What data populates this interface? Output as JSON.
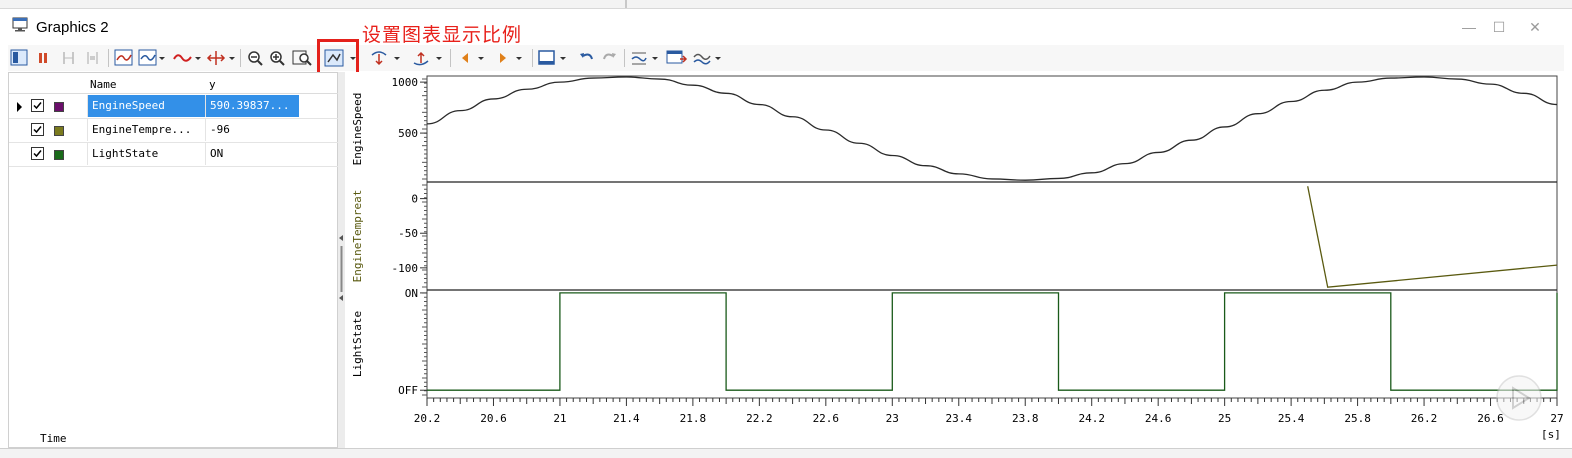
{
  "window": {
    "title": "Graphics 2"
  },
  "annotation": {
    "text": "设置图表显示比例"
  },
  "toolbar": {
    "icons": [
      "graphics-window-icon",
      "pause-icon",
      "measure-cursor-icon",
      "measure-cursor-2-icon",
      "signal-layout-icon",
      "signal-layout-2-icon",
      "line-style-icon",
      "axis-fit-icon",
      "zoom-out-icon",
      "zoom-in-icon",
      "zoom-fit-icon",
      "scale-settings-icon",
      "marker-down-icon",
      "marker-up-icon",
      "step-back-icon",
      "step-forward-icon",
      "window-layout-icon",
      "undo-icon",
      "redo-icon",
      "legend-icon",
      "export-icon",
      "trend-icon"
    ]
  },
  "signal_table": {
    "headers": {
      "name": "Name",
      "value": "y"
    },
    "rows": [
      {
        "name": "EngineSpeed",
        "value": "590.39837...",
        "color": "#6b0f6b",
        "selected": true
      },
      {
        "name": "EngineTempre...",
        "value": "-96",
        "color": "#7a7a1e",
        "selected": false
      },
      {
        "name": "LightState",
        "value": "ON",
        "color": "#1a6a1a",
        "selected": false
      }
    ],
    "footer_label": "Time"
  },
  "chart_data": [
    {
      "type": "line",
      "ylabel": "EngineSpeed",
      "yticks": [
        "1000",
        "500"
      ],
      "color": "#2a2a2a",
      "x": [
        20.2,
        20.4,
        20.6,
        20.8,
        21.0,
        21.2,
        21.4,
        21.6,
        21.8,
        22.0,
        22.2,
        22.4,
        22.6,
        22.8,
        23.0,
        23.2,
        23.4,
        23.6,
        23.8,
        24.0,
        24.2,
        24.4,
        24.6,
        24.8,
        25.0,
        25.2,
        25.4,
        25.6,
        25.8,
        26.0,
        26.2,
        26.4,
        26.6,
        26.8,
        27.0
      ],
      "y": [
        590,
        720,
        835,
        930,
        1000,
        1040,
        1050,
        1030,
        970,
        890,
        780,
        660,
        530,
        400,
        280,
        180,
        100,
        50,
        38,
        55,
        110,
        200,
        310,
        430,
        560,
        690,
        810,
        920,
        1000,
        1040,
        1050,
        1030,
        980,
        890,
        780
      ]
    },
    {
      "type": "line",
      "ylabel": "EngineTempreat",
      "yticks": [
        "0",
        "-50",
        "-100"
      ],
      "color": "#5a5a10",
      "x": [
        25.5,
        25.62,
        27.0
      ],
      "y": [
        18,
        -128,
        -96
      ]
    },
    {
      "type": "line",
      "ylabel": "LightState",
      "yticks": [
        "ON",
        "OFF"
      ],
      "color": "#1a5a1a",
      "x": [
        20.2,
        21.0,
        21.0,
        22.0,
        22.0,
        23.0,
        23.0,
        24.0,
        24.0,
        25.0,
        25.0,
        26.0,
        26.0,
        27.0,
        27.0
      ],
      "y": [
        0,
        0,
        1,
        1,
        0,
        0,
        1,
        1,
        0,
        0,
        1,
        1,
        0,
        0,
        1
      ]
    }
  ],
  "x_axis": {
    "ticks": [
      "20.2",
      "20.6",
      "21",
      "21.4",
      "21.8",
      "22.2",
      "22.6",
      "23",
      "23.4",
      "23.8",
      "24.2",
      "24.6",
      "25",
      "25.4",
      "25.8",
      "26.2",
      "26.6",
      "27"
    ],
    "unit": "[s]"
  }
}
